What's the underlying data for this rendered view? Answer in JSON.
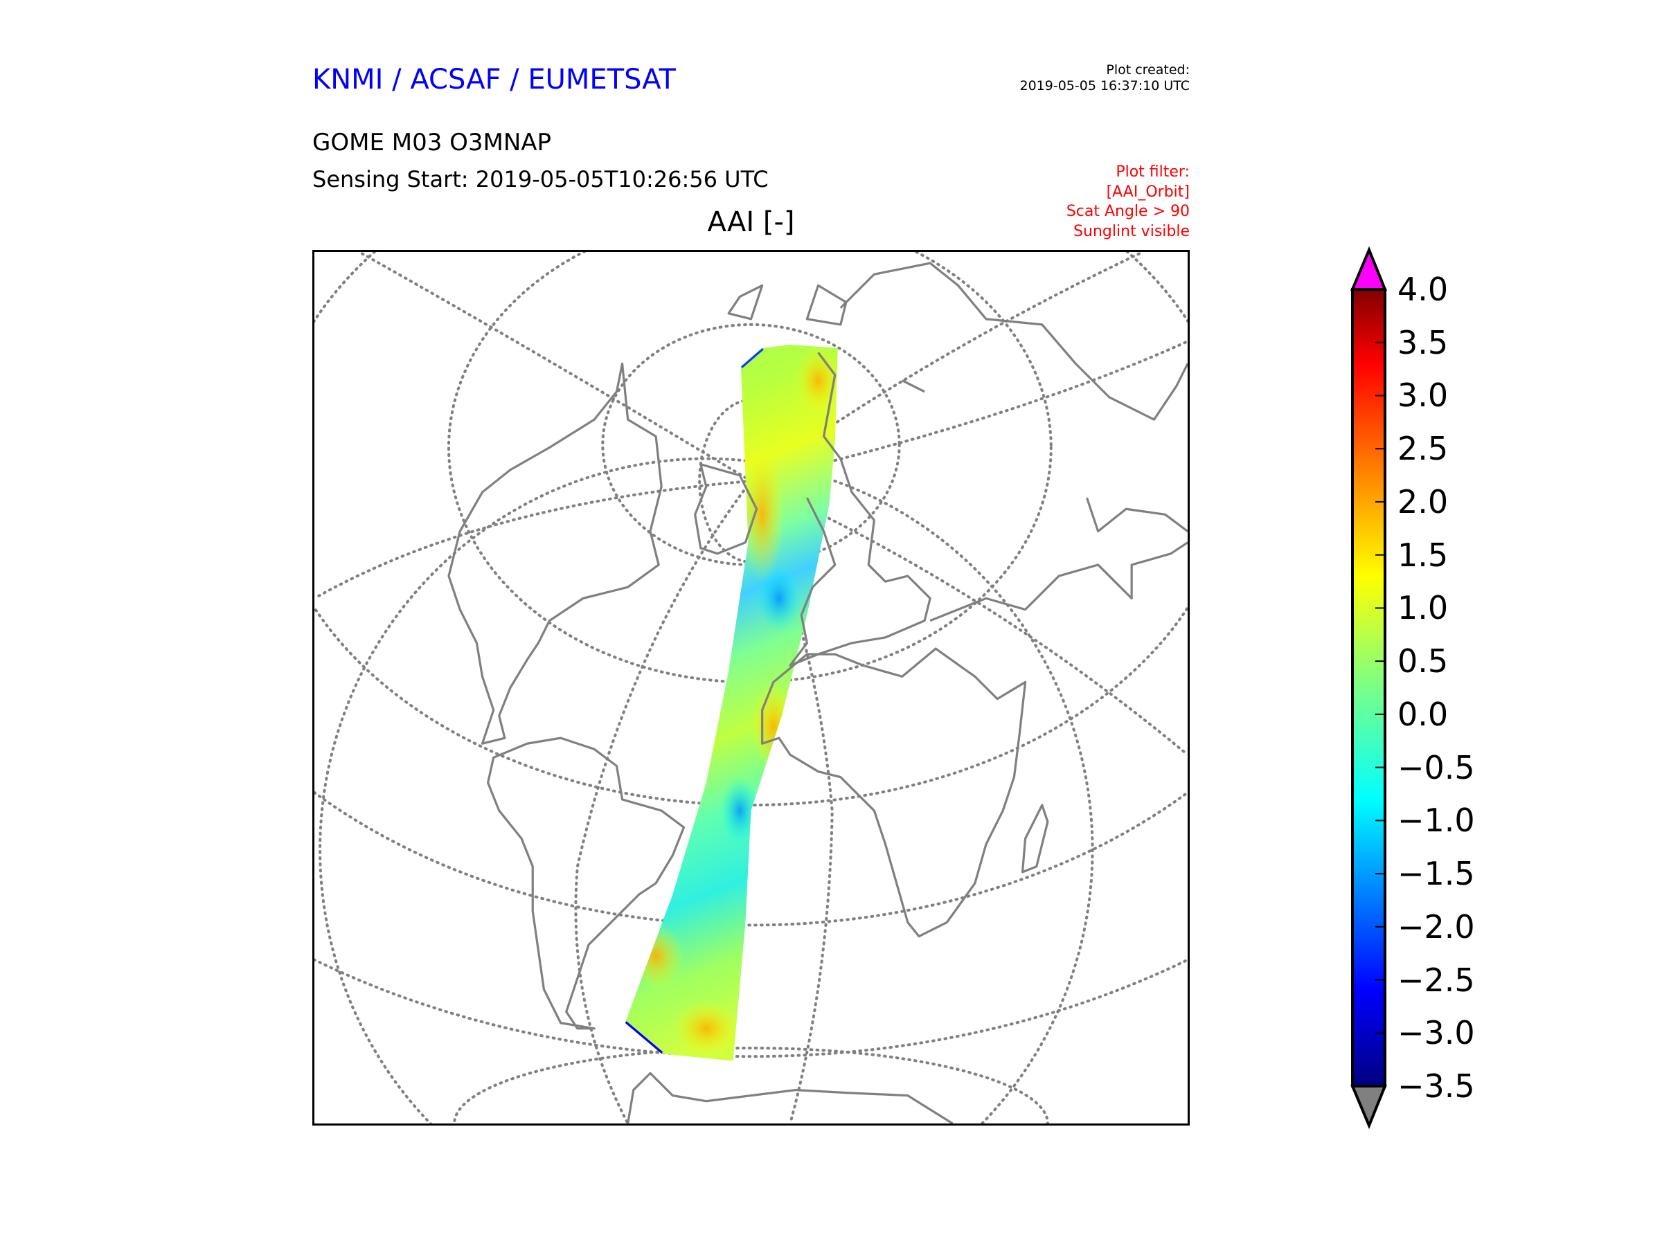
{
  "header": {
    "organisation": "KNMI / ACSAF / EUMETSAT",
    "created_label": "Plot created:",
    "created_time": "2019-05-05 16:37:10 UTC",
    "product": "GOME M03 O3MNAP",
    "sensing_start": "Sensing Start: 2019-05-05T10:26:56 UTC",
    "filter_lines": [
      "Plot filter:",
      "[AAI_Orbit]",
      "Scat Angle > 90",
      "Sunglint visible"
    ]
  },
  "chart_data": {
    "type": "heatmap",
    "title": "AAI [-]",
    "description_type": "satellite swath on polar projection map",
    "colorbar": {
      "min": -3.5,
      "max": 4.0,
      "ticks": [
        4.0,
        3.5,
        3.0,
        2.5,
        2.0,
        1.5,
        1.0,
        0.5,
        0.0,
        -0.5,
        -1.0,
        -1.5,
        -2.0,
        -2.5,
        -3.0,
        -3.5
      ],
      "tick_labels": [
        "4.0",
        "3.5",
        "3.0",
        "2.5",
        "2.0",
        "1.5",
        "1.0",
        "0.5",
        "0.0",
        "−0.5",
        "−1.0",
        "−1.5",
        "−2.0",
        "−2.5",
        "−3.0",
        "−3.5"
      ],
      "extend_max_color": "#ff00ff",
      "extend_min_color": "#808080",
      "colormap_stops": [
        {
          "value": 4.0,
          "color": "#800000"
        },
        {
          "value": 3.3,
          "color": "#ff0000"
        },
        {
          "value": 2.3,
          "color": "#ff8000"
        },
        {
          "value": 1.3,
          "color": "#ffff00"
        },
        {
          "value": 0.3,
          "color": "#80ff80"
        },
        {
          "value": -0.8,
          "color": "#00ffff"
        },
        {
          "value": -1.7,
          "color": "#0080ff"
        },
        {
          "value": -2.6,
          "color": "#0000ff"
        },
        {
          "value": -3.5,
          "color": "#000080"
        }
      ]
    },
    "swath_typical_range": [
      -1.5,
      2.0
    ],
    "coastline_color": "#808080",
    "graticule_color": "#808080"
  }
}
